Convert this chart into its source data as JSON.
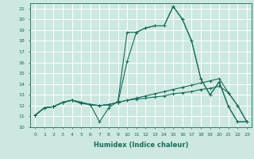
{
  "title": "",
  "xlabel": "Humidex (Indice chaleur)",
  "ylabel": "",
  "bg_color": "#cce8e0",
  "line_color": "#1a6b5a",
  "grid_color": "#ffffff",
  "xlim": [
    -0.5,
    23.5
  ],
  "ylim": [
    10,
    21.5
  ],
  "yticks": [
    10,
    11,
    12,
    13,
    14,
    15,
    16,
    17,
    18,
    19,
    20,
    21
  ],
  "xticks": [
    0,
    1,
    2,
    3,
    4,
    5,
    6,
    7,
    8,
    9,
    10,
    11,
    12,
    13,
    14,
    15,
    16,
    17,
    18,
    19,
    20,
    21,
    22,
    23
  ],
  "series": [
    [
      11.1,
      11.8,
      11.9,
      12.3,
      12.5,
      12.2,
      12.1,
      10.5,
      11.8,
      12.4,
      18.8,
      18.8,
      19.2,
      19.4,
      19.4,
      21.2,
      20.0,
      18.0,
      14.5,
      13.0,
      14.2,
      11.9,
      10.5,
      10.5
    ],
    [
      11.1,
      11.8,
      11.9,
      12.3,
      12.5,
      12.3,
      12.1,
      12.0,
      12.1,
      12.3,
      12.5,
      12.6,
      12.7,
      12.8,
      12.9,
      13.1,
      13.2,
      13.3,
      13.5,
      13.6,
      13.8,
      13.2,
      12.0,
      10.5
    ],
    [
      11.1,
      11.8,
      11.9,
      12.3,
      12.5,
      12.3,
      12.1,
      12.0,
      12.1,
      12.3,
      12.5,
      12.7,
      12.9,
      13.1,
      13.3,
      13.5,
      13.7,
      13.9,
      14.1,
      14.3,
      14.5,
      13.2,
      12.0,
      10.5
    ],
    [
      11.1,
      11.8,
      11.9,
      12.3,
      12.5,
      12.3,
      12.1,
      12.0,
      12.1,
      12.3,
      16.1,
      18.8,
      19.2,
      19.4,
      19.4,
      21.2,
      20.0,
      18.0,
      14.5,
      13.0,
      14.2,
      11.9,
      10.5,
      10.5
    ]
  ]
}
